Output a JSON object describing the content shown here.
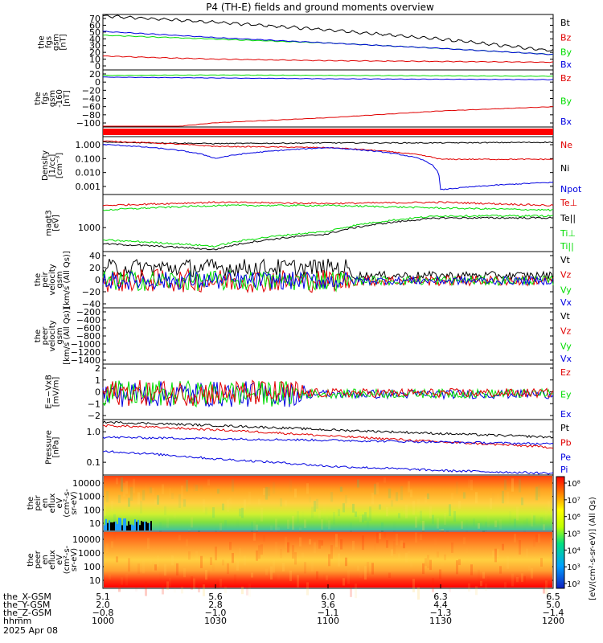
{
  "title": "P4 (TH-E) fields and ground moments overview",
  "colors": {
    "black": "#000000",
    "red": "#e00000",
    "green": "#00dd00",
    "blue": "#0000e0",
    "lime": "#00ee00"
  },
  "panels": [
    {
      "id": "fgs-mag",
      "ylabel": [
        "the",
        "fgs",
        "gsm",
        "[nT]"
      ],
      "ticks": [
        "70",
        "60",
        "50",
        "40",
        "30",
        "20",
        "10",
        "0"
      ],
      "ylim": [
        0,
        72
      ],
      "scale": "linear",
      "legend": [
        {
          "name": "Bt",
          "color": "#000000"
        },
        {
          "name": "Bz",
          "color": "#e00000"
        },
        {
          "name": "By",
          "color": "#00dd00"
        },
        {
          "name": "Bx",
          "color": "#0000e0"
        }
      ]
    },
    {
      "id": "fgs-comp",
      "ylabel": [
        "the",
        "fgs",
        "gsm",
        "-160",
        "[nT]"
      ],
      "ticks": [
        "20",
        "0",
        "−20",
        "−40",
        "−60",
        "−80",
        "−100"
      ],
      "ylim": [
        -110,
        25
      ],
      "scale": "linear",
      "legend": [
        {
          "name": "Bz",
          "color": "#e00000"
        },
        {
          "name": "By",
          "color": "#00dd00"
        },
        {
          "name": "Bx",
          "color": "#0000e0"
        }
      ]
    },
    {
      "id": "flag",
      "ylabel": [],
      "ticks": [],
      "legend": []
    },
    {
      "id": "density",
      "ylabel": [
        "Density",
        "[1/cc]",
        "[cm⁻³]"
      ],
      "ticks": [
        "1.000",
        "0.100",
        "0.010",
        "0.001"
      ],
      "ylim": [
        -3.3,
        0.4
      ],
      "scale": "log",
      "legend": [
        {
          "name": "Ne",
          "color": "#e00000"
        },
        {
          "name": "Ni",
          "color": "#000000"
        },
        {
          "name": "Npot",
          "color": "#0000e0"
        }
      ]
    },
    {
      "id": "temp",
      "ylabel": [
        "magt3",
        "[eV]"
      ],
      "ticks": [
        "1000"
      ],
      "ylim": [
        2.4,
        4.6
      ],
      "scale": "log",
      "legend": [
        {
          "name": "Te⊥",
          "color": "#e00000"
        },
        {
          "name": "Te||",
          "color": "#000000"
        },
        {
          "name": "Ti⊥",
          "color": "#00dd00"
        },
        {
          "name": "Ti||",
          "color": "#00dd00"
        }
      ]
    },
    {
      "id": "peir-vel",
      "ylabel": [
        "the",
        "peir",
        "velocity",
        "gsm",
        "[km/s (All Qs)]"
      ],
      "ticks": [
        "40",
        "20",
        "0",
        "−20",
        "−40"
      ],
      "ylim": [
        -42,
        45
      ],
      "scale": "linear",
      "legend": [
        {
          "name": "Vt",
          "color": "#000000"
        },
        {
          "name": "Vz",
          "color": "#e00000"
        },
        {
          "name": "Vy",
          "color": "#00dd00"
        },
        {
          "name": "Vx",
          "color": "#0000e0"
        }
      ]
    },
    {
      "id": "peer-vel",
      "ylabel": [
        "the",
        "peer",
        "velocity",
        "gsm",
        "[km/s (All Qs)]"
      ],
      "ticks": [
        "−200",
        "−400",
        "−600",
        "−800",
        "−1000",
        "−1200",
        "−1400"
      ],
      "ylim": [
        -1450,
        0
      ],
      "scale": "linear",
      "legend": [
        {
          "name": "Vt",
          "color": "#000000"
        },
        {
          "name": "Vz",
          "color": "#e00000"
        },
        {
          "name": "Vy",
          "color": "#00dd00"
        },
        {
          "name": "Vx",
          "color": "#0000e0"
        }
      ]
    },
    {
      "id": "efield",
      "ylabel": [
        "E=−VxB",
        "[mV/m]"
      ],
      "ticks": [
        "2",
        "1",
        "0",
        "−1",
        "−2"
      ],
      "ylim": [
        -2.2,
        2.5
      ],
      "scale": "linear",
      "legend": [
        {
          "name": "Ez",
          "color": "#e00000"
        },
        {
          "name": "Ey",
          "color": "#00dd00"
        },
        {
          "name": "Ex",
          "color": "#0000e0"
        }
      ]
    },
    {
      "id": "pressure",
      "ylabel": [
        "Pressure",
        "[nPa]"
      ],
      "ticks": [
        "1.0",
        "0.1"
      ],
      "ylim": [
        -1.35,
        0.25
      ],
      "scale": "log",
      "legend": [
        {
          "name": "Pt",
          "color": "#000000"
        },
        {
          "name": "Pb",
          "color": "#e00000"
        },
        {
          "name": "Pe",
          "color": "#0000e0"
        },
        {
          "name": "Pi",
          "color": "#0000e0"
        }
      ]
    },
    {
      "id": "peir-flux",
      "ylabel": [
        "the",
        "peir",
        "en",
        "eflux",
        "eV",
        "(cm²-s-",
        "sr-eV)"
      ],
      "ticks": [
        "10000",
        "1000",
        "100",
        "10"
      ],
      "legend": []
    },
    {
      "id": "peer-flux",
      "ylabel": [
        "the",
        "peer",
        "en",
        "eflux",
        "eV",
        "(cm²-s-",
        "sr-eV)"
      ],
      "ticks": [
        "10000",
        "1000",
        "100",
        "10"
      ],
      "legend": []
    }
  ],
  "colorbar": {
    "label": "[eV/(cm²-s-sr-eV)] (All Qs)",
    "ticks": [
      "10⁸",
      "10⁷",
      "10⁶",
      "10⁵",
      "10⁴",
      "10³",
      "10²"
    ]
  },
  "xaxis": {
    "rows": [
      {
        "label": "the_X-GSM",
        "values": [
          "5.1",
          "5.6",
          "6.0",
          "6.3",
          "6.5"
        ]
      },
      {
        "label": "the_Y-GSM",
        "values": [
          "2.0",
          "2.8",
          "3.6",
          "4.4",
          "5.0"
        ]
      },
      {
        "label": "the_Z-GSM",
        "values": [
          "−0.8",
          "−1.0",
          "−1.1",
          "−1.3",
          "−1.4"
        ]
      },
      {
        "label": "hhmm",
        "values": [
          "1000",
          "1030",
          "1100",
          "1130",
          "1200"
        ]
      }
    ],
    "date": "2025 Apr 08"
  },
  "chart_data": {
    "type": "line",
    "time_hhmm": [
      "1000",
      "1030",
      "1100",
      "1130",
      "1200"
    ],
    "title": "P4 (TH-E) fields and ground moments overview",
    "series": [
      {
        "panel": "fgs-mag",
        "name": "Bt",
        "values": [
          70,
          62,
          52,
          40,
          25
        ]
      },
      {
        "panel": "fgs-mag",
        "name": "By",
        "values": [
          45,
          40,
          35,
          28,
          20
        ]
      },
      {
        "panel": "fgs-mag",
        "name": "Bx",
        "values": [
          50,
          42,
          35,
          28,
          20
        ]
      },
      {
        "panel": "fgs-mag",
        "name": "Bz",
        "values": [
          18,
          14,
          12,
          11,
          10
        ]
      },
      {
        "panel": "fgs-comp",
        "name": "Bz",
        "values": [
          -125,
          -100,
          -88,
          -72,
          -62
        ]
      },
      {
        "panel": "fgs-comp",
        "name": "By",
        "values": [
          12,
          13,
          12,
          11,
          10
        ]
      },
      {
        "panel": "fgs-comp",
        "name": "Bx",
        "values": [
          8,
          6,
          4,
          3,
          2
        ]
      },
      {
        "panel": "density",
        "name": "Ni",
        "values": [
          1.1,
          0.9,
          1.0,
          1.0,
          1.1
        ]
      },
      {
        "panel": "density",
        "name": "Ne",
        "values": [
          1.3,
          0.6,
          0.5,
          0.09,
          0.09
        ]
      },
      {
        "panel": "density",
        "name": "Npot",
        "values": [
          0.8,
          0.1,
          0.5,
          0.001,
          0.003
        ]
      },
      {
        "panel": "temp",
        "name": "Te⊥",
        "values": [
          15000,
          20000,
          18000,
          20000,
          15000
        ]
      },
      {
        "panel": "temp",
        "name": "Te||",
        "values": [
          500,
          300,
          1200,
          5000,
          5000
        ]
      },
      {
        "panel": "temp",
        "name": "Ti⊥",
        "values": [
          10000,
          15000,
          15000,
          12000,
          10000
        ]
      },
      {
        "panel": "temp",
        "name": "Ti||",
        "values": [
          700,
          400,
          1500,
          6000,
          6000
        ]
      },
      {
        "panel": "pressure",
        "name": "Pt",
        "values": [
          1.5,
          1.2,
          0.9,
          0.7,
          0.55
        ]
      },
      {
        "panel": "pressure",
        "name": "Pb",
        "values": [
          1.2,
          0.9,
          0.6,
          0.4,
          0.28
        ]
      },
      {
        "panel": "pressure",
        "name": "Pe",
        "values": [
          0.55,
          0.5,
          0.45,
          0.4,
          0.35
        ]
      },
      {
        "panel": "pressure",
        "name": "Pi",
        "values": [
          0.22,
          0.13,
          0.08,
          0.06,
          0.05
        ]
      }
    ]
  }
}
